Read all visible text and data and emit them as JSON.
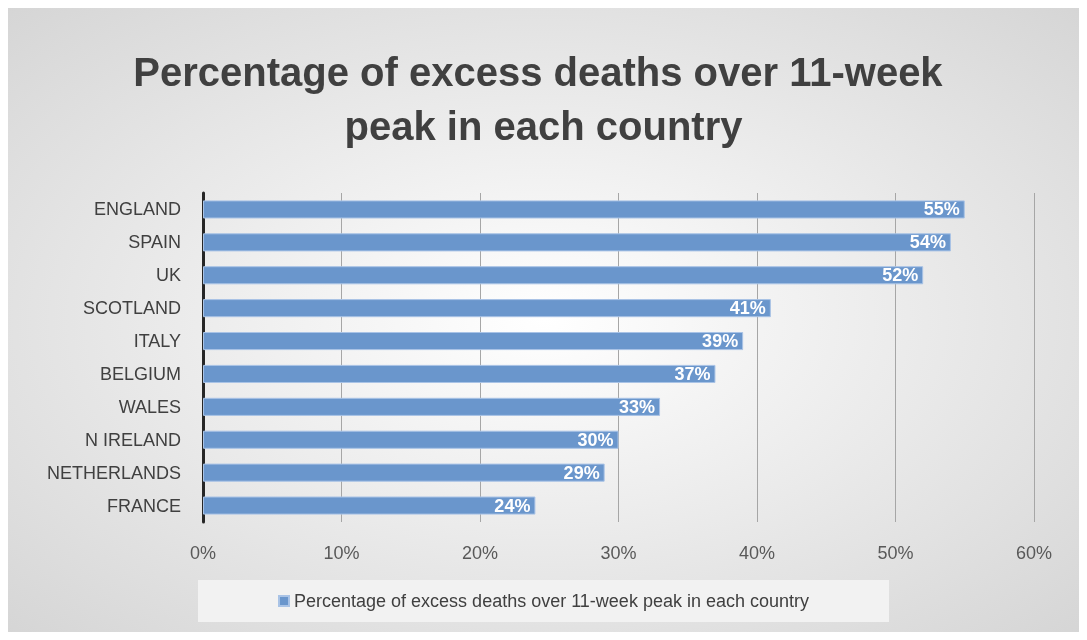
{
  "chart_data": {
    "type": "bar",
    "orientation": "horizontal",
    "title": "Percentage of excess deaths over 11-week peak in each country",
    "categories": [
      "ENGLAND",
      "SPAIN",
      "UK",
      "SCOTLAND",
      "ITALY",
      "BELGIUM",
      "WALES",
      "N IRELAND",
      "NETHERLANDS",
      "FRANCE"
    ],
    "series": [
      {
        "name": "Percentage of excess deaths over 11-week peak in each country",
        "color": "#6a96cc",
        "values": [
          55,
          54,
          52,
          41,
          39,
          37,
          33,
          30,
          29,
          24
        ],
        "value_labels": [
          "55%",
          "54%",
          "52%",
          "41%",
          "39%",
          "37%",
          "33%",
          "30%",
          "29%",
          "24%"
        ]
      }
    ],
    "xlim": [
      0,
      60
    ],
    "xticks": [
      {
        "value": 0,
        "label": "0%"
      },
      {
        "value": 10,
        "label": "10%"
      },
      {
        "value": 20,
        "label": "20%"
      },
      {
        "value": 30,
        "label": "30%"
      },
      {
        "value": 40,
        "label": "40%"
      },
      {
        "value": 50,
        "label": "50%"
      },
      {
        "value": 60,
        "label": "60%"
      }
    ],
    "grid": "x",
    "legend": "bottom"
  }
}
